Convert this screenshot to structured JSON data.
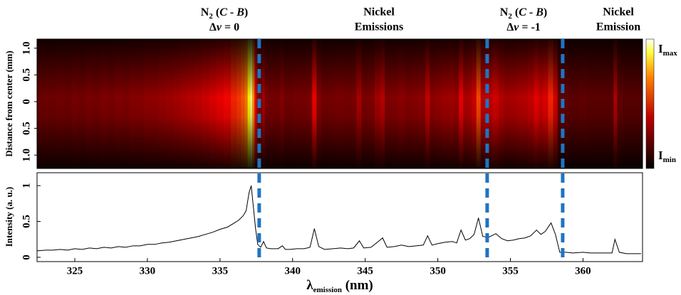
{
  "annotations": [
    {
      "line1": [
        "N",
        "2",
        " (",
        "C",
        " - ",
        "B",
        ")"
      ],
      "line2": [
        "Δ",
        "v",
        " = 0"
      ]
    },
    {
      "line1": [
        "Nickel"
      ],
      "line2": [
        "Emissions"
      ]
    },
    {
      "line1": [
        "N",
        "2",
        " (",
        "C",
        " - ",
        "B",
        ")"
      ],
      "line2": [
        "Δ",
        "v",
        " = -1"
      ]
    },
    {
      "line1": [
        "Nickel"
      ],
      "line2": [
        "Emission"
      ]
    }
  ],
  "chart_data": [
    {
      "type": "heatmap",
      "ylabel": "Distance from center (mm)",
      "ylim": [
        -1.25,
        1.17
      ],
      "yticks": [
        {
          "value": 1.0,
          "label": "1.0"
        },
        {
          "value": 0.5,
          "label": "0.5"
        },
        0,
        {
          "value": -0.5,
          "label": "0.5"
        },
        {
          "value": -1.0,
          "label": "1.0"
        }
      ],
      "colorbar": {
        "max": [
          "I",
          "max"
        ],
        "min": [
          "I",
          "min"
        ]
      }
    },
    {
      "type": "line",
      "ylabel": "Intensity (a. u.)",
      "xlabel": [
        "λ",
        "emission",
        " (nm)"
      ],
      "xlim": [
        322.4,
        364.1
      ],
      "ylim": [
        -0.06,
        1.18
      ],
      "xticks": [
        325,
        330,
        335,
        340,
        345,
        350,
        355,
        360
      ],
      "yticks": [
        0,
        0.5,
        1
      ],
      "series": [
        {
          "color": "#000000",
          "x": [
            322.4,
            323,
            323.5,
            324,
            324.5,
            325,
            325.5,
            326,
            326.5,
            327,
            327.5,
            328,
            328.5,
            329,
            329.5,
            330,
            330.5,
            331,
            331.5,
            332,
            332.5,
            333,
            333.5,
            334,
            334.5,
            335,
            335.5,
            336,
            336.3,
            336.6,
            336.8,
            337.0,
            337.15,
            337.3,
            337.45,
            337.6,
            337.8,
            338.0,
            338.2,
            338.5,
            339,
            339.3,
            339.5,
            339.8,
            340.3,
            340.8,
            341.2,
            341.5,
            341.8,
            342.2,
            342.8,
            343.3,
            343.8,
            344.2,
            344.6,
            344.9,
            345.4,
            345.9,
            346.2,
            346.5,
            347,
            347.5,
            348,
            348.5,
            349,
            349.3,
            349.6,
            350,
            350.5,
            351,
            351.3,
            351.6,
            351.9,
            352.2,
            352.5,
            352.8,
            353.1,
            353.5,
            354,
            354.4,
            354.8,
            355.2,
            355.6,
            356,
            356.4,
            356.8,
            357.1,
            357.4,
            357.8,
            358.1,
            358.4,
            358.8,
            359.3,
            360,
            360.5,
            361,
            361.5,
            362,
            362.2,
            362.5,
            363,
            363.5,
            364
          ],
          "values": [
            0.09,
            0.1,
            0.1,
            0.11,
            0.1,
            0.12,
            0.11,
            0.13,
            0.12,
            0.14,
            0.13,
            0.15,
            0.14,
            0.16,
            0.16,
            0.18,
            0.18,
            0.2,
            0.21,
            0.23,
            0.25,
            0.27,
            0.29,
            0.32,
            0.35,
            0.39,
            0.42,
            0.48,
            0.52,
            0.58,
            0.65,
            0.9,
            1.0,
            0.7,
            0.4,
            0.18,
            0.14,
            0.22,
            0.13,
            0.12,
            0.12,
            0.16,
            0.11,
            0.11,
            0.12,
            0.12,
            0.14,
            0.4,
            0.15,
            0.11,
            0.12,
            0.13,
            0.12,
            0.13,
            0.23,
            0.13,
            0.14,
            0.22,
            0.27,
            0.14,
            0.15,
            0.17,
            0.15,
            0.16,
            0.17,
            0.3,
            0.17,
            0.19,
            0.21,
            0.22,
            0.2,
            0.38,
            0.24,
            0.26,
            0.32,
            0.55,
            0.29,
            0.28,
            0.33,
            0.26,
            0.23,
            0.24,
            0.26,
            0.27,
            0.3,
            0.38,
            0.32,
            0.36,
            0.48,
            0.32,
            0.07,
            0.07,
            0.06,
            0.07,
            0.06,
            0.06,
            0.06,
            0.06,
            0.25,
            0.07,
            0.05,
            0.05,
            0.05
          ]
        }
      ],
      "markers": {
        "x": [
          337.7,
          353.4,
          358.6
        ],
        "color": "#1f74c2"
      }
    }
  ]
}
